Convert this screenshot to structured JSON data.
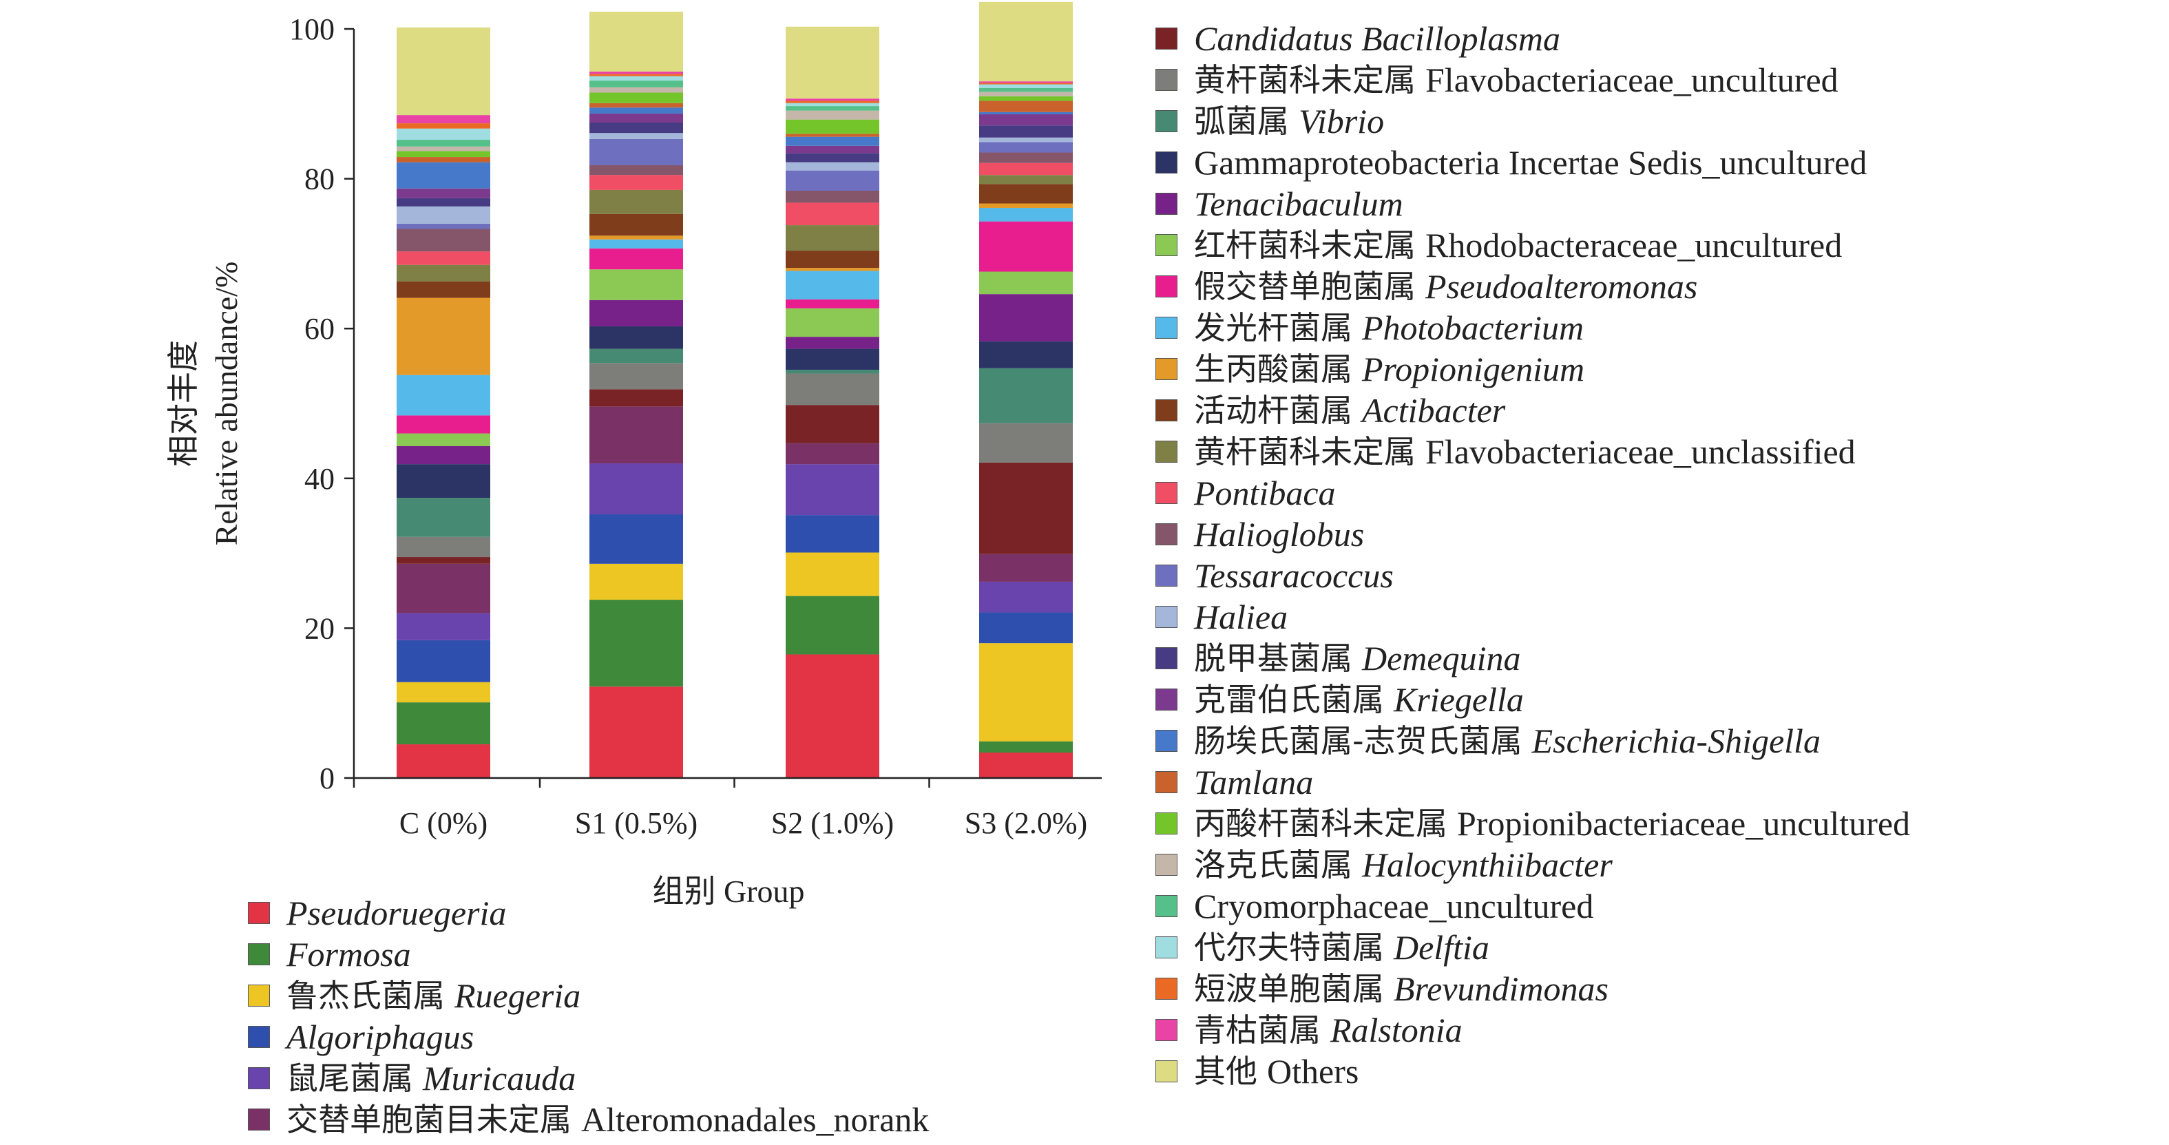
{
  "chart_data": {
    "type": "stacked-bar",
    "ylabel_cn": "相对丰度",
    "ylabel_en": "Relative abundance/%",
    "xlabel": "组别 Group",
    "ylim": [
      0,
      100
    ],
    "yticks": [
      "0",
      "20",
      "40",
      "60",
      "80",
      "100"
    ],
    "categories": [
      "C (0%)",
      "S1 (0.5%)",
      "S2 (1.0%)",
      "S3 (2.0%)"
    ],
    "series": [
      {
        "cn": "",
        "lat": "Pseudoruegeria",
        "en": "",
        "color": "#e33446",
        "values": [
          4.5,
          12.2,
          16.5,
          3.4
        ]
      },
      {
        "cn": "",
        "lat": "Formosa",
        "en": "",
        "color": "#3f8a3a",
        "values": [
          5.6,
          11.6,
          7.8,
          1.5
        ]
      },
      {
        "cn": "鲁杰氏菌属",
        "lat": "Ruegeria",
        "en": "",
        "color": "#eec623",
        "values": [
          2.7,
          4.8,
          5.8,
          13.1
        ]
      },
      {
        "cn": "",
        "lat": "Algoriphagus",
        "en": "",
        "color": "#2f4fae",
        "values": [
          5.6,
          6.6,
          5.0,
          4.1
        ]
      },
      {
        "cn": "鼠尾菌属",
        "lat": "Muricauda",
        "en": "",
        "color": "#6a44ad",
        "values": [
          3.6,
          6.8,
          6.8,
          4.1
        ]
      },
      {
        "cn": "交替单胞菌目未定属",
        "lat": "",
        "en": "Alteromonadales_norank",
        "color": "#7a3266",
        "values": [
          6.6,
          7.6,
          2.8,
          3.7
        ]
      },
      {
        "cn": "",
        "lat": "Candidatus Bacilloplasma",
        "en": "",
        "color": "#7a2326",
        "values": [
          0.9,
          2.3,
          5.1,
          12.2
        ]
      },
      {
        "cn": "黄杆菌科未定属",
        "lat": "",
        "en": "Flavobacteriaceae_uncultured",
        "color": "#7d7d7a",
        "values": [
          2.7,
          3.5,
          4.2,
          5.3
        ]
      },
      {
        "cn": "弧菌属",
        "lat": "Vibrio",
        "en": "",
        "color": "#468a73",
        "values": [
          5.2,
          1.9,
          0.5,
          7.3
        ]
      },
      {
        "cn": "",
        "lat": "",
        "en": "Gammaproteobacteria Incertae Sedis_uncultured",
        "color": "#2c3465",
        "values": [
          4.5,
          3.0,
          2.8,
          3.6
        ]
      },
      {
        "cn": "",
        "lat": "Tenacibaculum",
        "en": "",
        "color": "#762288",
        "values": [
          2.4,
          3.5,
          1.6,
          6.3
        ]
      },
      {
        "cn": "红杆菌科未定属",
        "lat": "",
        "en": "Rhodobacteraceae_uncultured",
        "color": "#8cc954",
        "values": [
          1.7,
          4.1,
          3.8,
          3.0
        ]
      },
      {
        "cn": "假交替单胞菌属",
        "lat": "Pseudoalteromonas",
        "en": "",
        "color": "#e81e8f",
        "values": [
          2.4,
          2.8,
          1.2,
          6.7
        ]
      },
      {
        "cn": "发光杆菌属",
        "lat": "Photobacterium",
        "en": "",
        "color": "#55b9ea",
        "values": [
          5.4,
          1.2,
          3.8,
          1.8
        ]
      },
      {
        "cn": "生丙酸菌属",
        "lat": "Propionigenium",
        "en": "",
        "color": "#e39a28",
        "values": [
          10.3,
          0.5,
          0.4,
          0.6
        ]
      },
      {
        "cn": "活动杆菌属",
        "lat": "Actibacter",
        "en": "",
        "color": "#7f3d1c",
        "values": [
          2.2,
          2.9,
          2.3,
          2.6
        ]
      },
      {
        "cn": "黄杆菌科未定属",
        "lat": "",
        "en": "Flavobacteriaceae_unclassified",
        "color": "#7f8045",
        "values": [
          2.2,
          3.2,
          3.4,
          1.2
        ]
      },
      {
        "cn": "",
        "lat": "Pontibaca",
        "en": "",
        "color": "#f04e64",
        "values": [
          1.8,
          2.0,
          3.0,
          1.6
        ]
      },
      {
        "cn": "",
        "lat": "Halioglobus",
        "en": "",
        "color": "#85566a",
        "values": [
          3.0,
          1.3,
          1.6,
          1.4
        ]
      },
      {
        "cn": "",
        "lat": "Tessaracoccus",
        "en": "",
        "color": "#6e6fbe",
        "values": [
          0.7,
          3.5,
          2.7,
          1.4
        ]
      },
      {
        "cn": "",
        "lat": "Haliea",
        "en": "",
        "color": "#a4b7da",
        "values": [
          2.3,
          0.8,
          1.1,
          0.6
        ]
      },
      {
        "cn": "脱甲基菌属",
        "lat": "Demequina",
        "en": "",
        "color": "#473c83",
        "values": [
          1.1,
          1.4,
          1.2,
          1.6
        ]
      },
      {
        "cn": "克雷伯氏菌属",
        "lat": "Kriegella",
        "en": "",
        "color": "#7b3a8e",
        "values": [
          1.3,
          1.2,
          1.0,
          1.5
        ]
      },
      {
        "cn": "肠埃氏菌属-志贺氏菌属",
        "lat": "Escherichia-Shigella",
        "en": "",
        "color": "#4679c9",
        "values": [
          3.5,
          0.8,
          1.2,
          0.3
        ]
      },
      {
        "cn": "",
        "lat": "Tamlana",
        "en": "",
        "color": "#c9622c",
        "values": [
          0.7,
          0.6,
          0.4,
          1.5
        ]
      },
      {
        "cn": "丙酸杆菌科未定属",
        "lat": "",
        "en": "Propionibacteriaceae_uncultured",
        "color": "#74c52a",
        "values": [
          0.8,
          1.4,
          1.9,
          0.6
        ]
      },
      {
        "cn": "洛克氏菌属",
        "lat": "Halocynthiibacter",
        "en": "",
        "color": "#c4b6a9",
        "values": [
          0.6,
          0.7,
          1.2,
          0.6
        ]
      },
      {
        "cn": "",
        "lat": "",
        "en": "Cryomorphaceae_uncultured",
        "color": "#56c08a",
        "values": [
          0.9,
          0.9,
          0.6,
          0.5
        ]
      },
      {
        "cn": "代尔夫特菌属",
        "lat": "Delftia",
        "en": "",
        "color": "#9fdde0",
        "values": [
          1.5,
          0.6,
          0.4,
          0.5
        ]
      },
      {
        "cn": "短波单胞菌属",
        "lat": "Brevundimonas",
        "en": "",
        "color": "#ea6a25",
        "values": [
          0.7,
          0.3,
          0.3,
          0.2
        ]
      },
      {
        "cn": "青枯菌属",
        "lat": "Ralstonia",
        "en": "",
        "color": "#e843a5",
        "values": [
          1.1,
          0.3,
          0.3,
          0.2
        ]
      },
      {
        "cn": "其他",
        "lat": "",
        "en": "Others",
        "color": "#dedc82",
        "values": [
          11.7,
          8.0,
          9.6,
          10.6
        ]
      }
    ]
  }
}
